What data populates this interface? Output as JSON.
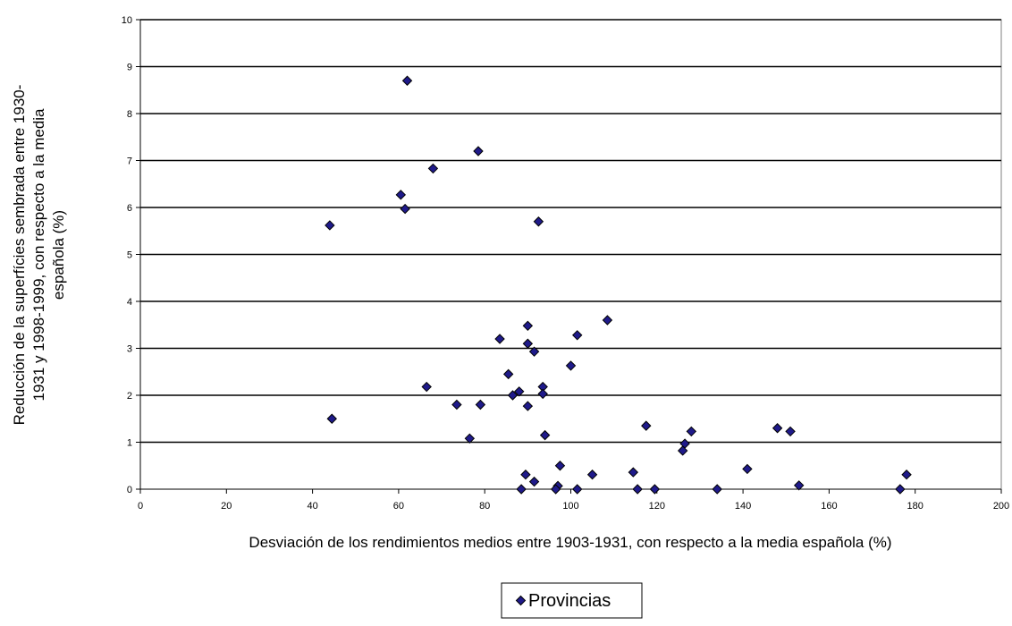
{
  "chart_data": {
    "type": "scatter",
    "title": "",
    "xlabel": "Desviación de los rendimientos medios entre 1903-1931, con respecto a la media española (%)",
    "ylabel_lines": [
      "Reducción de la superfícies sembrada entre 1930-",
      "1931 y 1998-1999, con respecto a la media",
      "española (%)"
    ],
    "xlim": [
      0,
      200
    ],
    "ylim": [
      0,
      10
    ],
    "xticks": [
      0,
      20,
      40,
      60,
      80,
      100,
      120,
      140,
      160,
      180,
      200
    ],
    "yticks": [
      0,
      1,
      2,
      3,
      4,
      5,
      6,
      7,
      8,
      9,
      10
    ],
    "grid": "horizontal",
    "legend_position": "bottom-center",
    "colors": {
      "marker_fill": "#1f1a8a",
      "marker_stroke": "#000000",
      "gridline": "#000000"
    },
    "series": [
      {
        "name": "Provincias",
        "marker": "diamond",
        "points": [
          [
            62.0,
            8.7
          ],
          [
            78.5,
            7.2
          ],
          [
            68.0,
            6.83
          ],
          [
            60.5,
            6.27
          ],
          [
            61.5,
            5.97
          ],
          [
            92.5,
            5.7
          ],
          [
            44.0,
            5.62
          ],
          [
            108.5,
            3.6
          ],
          [
            90.0,
            3.48
          ],
          [
            101.5,
            3.28
          ],
          [
            83.5,
            3.2
          ],
          [
            90.0,
            3.1
          ],
          [
            91.5,
            2.93
          ],
          [
            100.0,
            2.63
          ],
          [
            85.5,
            2.45
          ],
          [
            66.5,
            2.18
          ],
          [
            93.5,
            2.18
          ],
          [
            88.0,
            2.08
          ],
          [
            86.5,
            2.0
          ],
          [
            93.5,
            2.03
          ],
          [
            73.5,
            1.8
          ],
          [
            79.0,
            1.8
          ],
          [
            90.0,
            1.77
          ],
          [
            44.5,
            1.5
          ],
          [
            94.0,
            1.15
          ],
          [
            76.5,
            1.08
          ],
          [
            117.5,
            1.35
          ],
          [
            148.0,
            1.3
          ],
          [
            151.0,
            1.23
          ],
          [
            128.0,
            1.23
          ],
          [
            126.5,
            0.97
          ],
          [
            126.0,
            0.82
          ],
          [
            97.5,
            0.5
          ],
          [
            141.0,
            0.43
          ],
          [
            114.5,
            0.36
          ],
          [
            105.0,
            0.31
          ],
          [
            89.5,
            0.31
          ],
          [
            178.0,
            0.31
          ],
          [
            91.5,
            0.16
          ],
          [
            153.0,
            0.08
          ],
          [
            97.0,
            0.07
          ],
          [
            88.5,
            0.0
          ],
          [
            96.5,
            0.0
          ],
          [
            101.5,
            0.0
          ],
          [
            115.5,
            0.0
          ],
          [
            119.5,
            0.0
          ],
          [
            134.0,
            0.0
          ],
          [
            176.5,
            0.0
          ]
        ]
      }
    ]
  }
}
